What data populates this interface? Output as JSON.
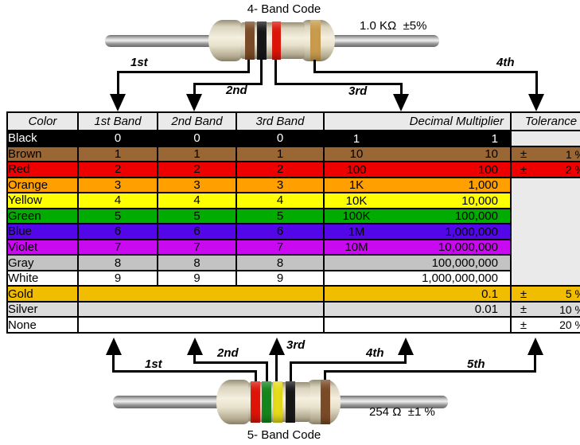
{
  "top": {
    "title": "4- Band Code",
    "value_label": "1.0 KΩ  ±5%",
    "arrows": [
      "1st",
      "2nd",
      "3rd",
      "4th"
    ],
    "bands": [
      "brown",
      "black",
      "red",
      "gold"
    ]
  },
  "bottom": {
    "title": "5- Band Code",
    "value_label": "254 Ω  ±1 %",
    "arrows": [
      "1st",
      "2nd",
      "3rd",
      "4th",
      "5th"
    ],
    "bands": [
      "red",
      "green",
      "yellow",
      "black",
      "brown"
    ]
  },
  "band_colors": {
    "brown": "#7B4A26",
    "black": "#161616",
    "red": "#DD1407",
    "gold": "#C99B4D",
    "green": "#15861C",
    "yellow": "#E6DC19"
  },
  "table": {
    "tol_sign": "±",
    "headers": [
      "Color",
      "1st Band",
      "2nd Band",
      "3rd Band",
      "Decimal Multiplier",
      "Tolerance"
    ],
    "rows": [
      {
        "name": "Black",
        "bg": "#000000",
        "fg": "#FFFFFF",
        "digits": [
          "0",
          "0",
          "0"
        ],
        "mult_prefix": "1",
        "mult_value": "1",
        "tol": null
      },
      {
        "name": "Brown",
        "bg": "#9A6633",
        "fg": "#000000",
        "digits": [
          "1",
          "1",
          "1"
        ],
        "mult_prefix": "10",
        "mult_value": "10",
        "tol": "1 %"
      },
      {
        "name": "Red",
        "bg": "#EE0000",
        "fg": "#000000",
        "digits": [
          "2",
          "2",
          "2"
        ],
        "mult_prefix": "100",
        "mult_value": "100",
        "tol": "2 %"
      },
      {
        "name": "Orange",
        "bg": "#FF9F00",
        "fg": "#000000",
        "digits": [
          "3",
          "3",
          "3"
        ],
        "mult_prefix": "1K",
        "mult_value": "1,000",
        "tol": null
      },
      {
        "name": "Yellow",
        "bg": "#FFFF00",
        "fg": "#000000",
        "digits": [
          "4",
          "4",
          "4"
        ],
        "mult_prefix": "10K",
        "mult_value": "10,000",
        "tol": null
      },
      {
        "name": "Green",
        "bg": "#00AC00",
        "fg": "#000000",
        "digits": [
          "5",
          "5",
          "5"
        ],
        "mult_prefix": "100K",
        "mult_value": "100,000",
        "tol": null
      },
      {
        "name": "Blue",
        "bg": "#5306E8",
        "fg": "#000000",
        "digits": [
          "6",
          "6",
          "6"
        ],
        "mult_prefix": "1M",
        "mult_value": "1,000,000",
        "tol": null
      },
      {
        "name": "Violet",
        "bg": "#C90AF0",
        "fg": "#000000",
        "digits": [
          "7",
          "7",
          "7"
        ],
        "mult_prefix": "10M",
        "mult_value": "10,000,000",
        "tol": null
      },
      {
        "name": "Gray",
        "bg": "#C3C3C3",
        "fg": "#000000",
        "digits": [
          "8",
          "8",
          "8"
        ],
        "mult_prefix": "",
        "mult_value": "100,000,000",
        "tol": null
      },
      {
        "name": "White",
        "bg": "#FFFFFF",
        "fg": "#000000",
        "digits": [
          "9",
          "9",
          "9"
        ],
        "mult_prefix": "",
        "mult_value": "1,000,000,000",
        "tol": null
      },
      {
        "name": "Gold",
        "bg": "#F0BD00",
        "fg": "#000000",
        "digits": null,
        "mult_prefix": "",
        "mult_value": "0.1",
        "tol": "5 %"
      },
      {
        "name": "Silver",
        "bg": "#DBDBDB",
        "fg": "#000000",
        "digits": null,
        "mult_prefix": "",
        "mult_value": "0.01",
        "tol": "10 %"
      },
      {
        "name": "None",
        "bg": "#FFFFFF",
        "fg": "#000000",
        "digits": null,
        "mult_prefix": "",
        "mult_value": "",
        "tol": "20 %"
      }
    ]
  }
}
